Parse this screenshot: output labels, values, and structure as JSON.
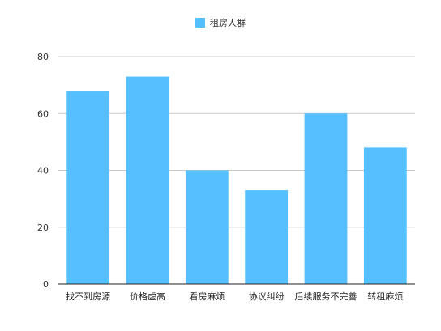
{
  "chart_data": {
    "type": "bar",
    "categories": [
      "找不到房源",
      "价格虚高",
      "看房麻烦",
      "协议纠纷",
      "后续服务不完善",
      "转租麻烦"
    ],
    "series": [
      {
        "name": "租房人群",
        "values": [
          68,
          73,
          40,
          33,
          60,
          48
        ],
        "color": "#55bfff"
      }
    ],
    "ylim": [
      0,
      80
    ],
    "yticks": [
      0,
      20,
      40,
      60,
      80
    ],
    "grid": true,
    "legend_position": "top-center"
  }
}
